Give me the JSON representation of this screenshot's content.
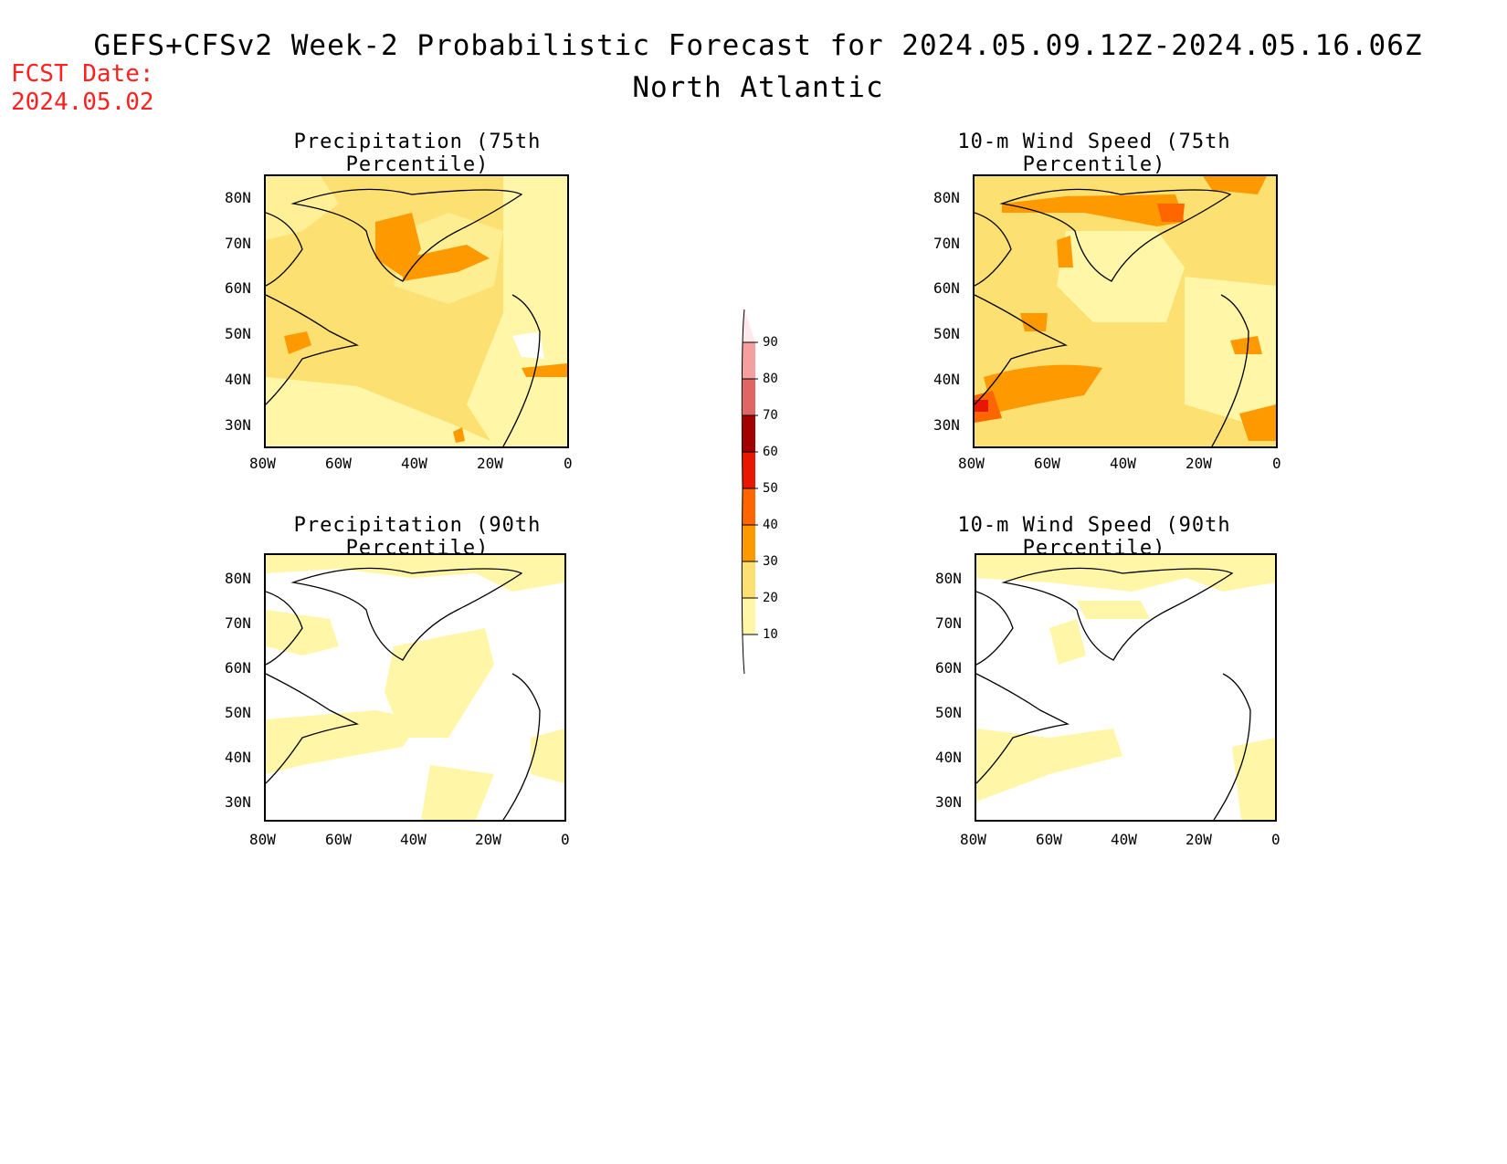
{
  "header": {
    "title": "GEFS+CFSv2 Week-2 Probabilistic Forecast for 2024.05.09.12Z-2024.05.16.06Z",
    "region": "North Atlantic",
    "fcst_label": "FCST Date:",
    "fcst_date": "2024.05.02"
  },
  "panels": [
    {
      "title": "Precipitation (75th Percentile)"
    },
    {
      "title": "10-m Wind Speed (75th Percentile)"
    },
    {
      "title": "Precipitation (90th Percentile)"
    },
    {
      "title": "10-m Wind Speed (90th Percentile)"
    }
  ],
  "axes": {
    "lat_ticks": [
      "80N",
      "70N",
      "60N",
      "50N",
      "40N",
      "30N"
    ],
    "lon_ticks": [
      "80W",
      "60W",
      "40W",
      "20W",
      "0"
    ]
  },
  "colorbar": {
    "levels": [
      "90",
      "80",
      "70",
      "60",
      "50",
      "40",
      "30",
      "20",
      "10"
    ],
    "colors": [
      "#ffe8ea",
      "#f4a0a0",
      "#e06666",
      "#a30000",
      "#e81800",
      "#ff6600",
      "#ff9900",
      "#fde072",
      "#fff6a8"
    ]
  },
  "colors": {
    "c10": "#fff6a8",
    "c20": "#fde072",
    "c30": "#ff9900",
    "c40": "#ff6600",
    "c50": "#e81800",
    "fcst_red": "#ff2020"
  }
}
